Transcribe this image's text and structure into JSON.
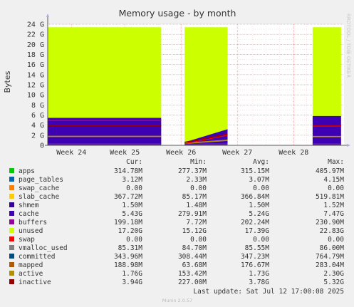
{
  "chart_data": {
    "type": "area",
    "title": "Memory usage - by month",
    "ylabel": "Bytes",
    "watermark": "RRDTOOL / TOBI OETIKER",
    "yunit": "G",
    "ylim": [
      0,
      24
    ],
    "yticks": [
      0,
      2,
      4,
      6,
      8,
      10,
      12,
      14,
      16,
      18,
      20,
      22,
      24
    ],
    "ytick_labels": [
      "0",
      "2 G",
      "4 G",
      "6 G",
      "8 G",
      "10 G",
      "12 G",
      "14 G",
      "16 G",
      "18 G",
      "20 G",
      "22 G",
      "24 G"
    ],
    "x_labels": [
      "Week 24",
      "Week 25",
      "Week 26",
      "Week 27",
      "Week 28"
    ],
    "x_label_positions": [
      0.08,
      0.26,
      0.45,
      0.64,
      0.83
    ],
    "segments": [
      {
        "x": [
          0.0,
          0.383
        ],
        "buffers": 0.2,
        "cache": [
          5.43,
          5.43
        ],
        "unused_top": 23.4,
        "committed": 0.34,
        "active": 1.76,
        "inactive": 3.94,
        "swap_line": 4.9
      },
      {
        "x": [
          0.462,
          0.607
        ],
        "buffers": 0.2,
        "cache": [
          0.6,
          3.2
        ],
        "unused_top": 23.4,
        "committed": 0.34,
        "active": [
          0.4,
          1.0
        ],
        "inactive": [
          0.6,
          2.2
        ],
        "swap_line": [
          0.3,
          2.0
        ]
      },
      {
        "x": [
          0.894,
          0.99
        ],
        "buffers": 0.2,
        "cache": [
          5.8,
          5.8
        ],
        "unused_top": 23.4,
        "committed": 0.34,
        "active": 1.73,
        "inactive": 3.94,
        "swap_line": 3.8
      }
    ],
    "legend_headers": [
      "Cur:",
      "Min:",
      "Avg:",
      "Max:"
    ],
    "series": [
      {
        "name": "apps",
        "color": "#00cc00",
        "cur": "314.78M",
        "min": "277.37M",
        "avg": "315.15M",
        "max": "405.97M"
      },
      {
        "name": "page_tables",
        "color": "#0066b3",
        "cur": "3.12M",
        "min": "2.33M",
        "avg": "3.07M",
        "max": "4.15M"
      },
      {
        "name": "swap_cache",
        "color": "#ff8000",
        "cur": "0.00",
        "min": "0.00",
        "avg": "0.00",
        "max": "0.00"
      },
      {
        "name": "slab_cache",
        "color": "#ffcc00",
        "cur": "367.72M",
        "min": "85.17M",
        "avg": "366.84M",
        "max": "519.81M"
      },
      {
        "name": "shmem",
        "color": "#330099",
        "cur": "1.50M",
        "min": "1.48M",
        "avg": "1.50M",
        "max": "1.52M"
      },
      {
        "name": "cache",
        "color": "#3d00b3",
        "cur": "5.43G",
        "min": "279.91M",
        "avg": "5.24G",
        "max": "7.47G"
      },
      {
        "name": "buffers",
        "color": "#990099",
        "cur": "199.18M",
        "min": "7.72M",
        "avg": "202.24M",
        "max": "230.90M"
      },
      {
        "name": "unused",
        "color": "#ccff00",
        "cur": "17.20G",
        "min": "15.12G",
        "avg": "17.39G",
        "max": "22.83G"
      },
      {
        "name": "swap",
        "color": "#ff0000",
        "cur": "0.00",
        "min": "0.00",
        "avg": "0.00",
        "max": "0.00"
      },
      {
        "name": "vmalloc_used",
        "color": "#808080",
        "cur": "85.31M",
        "min": "84.70M",
        "avg": "85.55M",
        "max": "86.00M"
      },
      {
        "name": "committed",
        "color": "#004d80",
        "cur": "343.96M",
        "min": "308.44M",
        "avg": "347.23M",
        "max": "764.79M"
      },
      {
        "name": "mapped",
        "color": "#b35a00",
        "cur": "188.98M",
        "min": "63.68M",
        "avg": "176.67M",
        "max": "283.04M"
      },
      {
        "name": "active",
        "color": "#b38f00",
        "cur": "1.76G",
        "min": "153.42M",
        "avg": "1.73G",
        "max": "2.30G"
      },
      {
        "name": "inactive",
        "color": "#990000",
        "cur": "3.94G",
        "min": "227.00M",
        "avg": "3.78G",
        "max": "5.32G"
      }
    ],
    "last_update": "Last update: Sat Jul 12 17:00:08 2025",
    "footer": "Munin 2.0.57"
  }
}
